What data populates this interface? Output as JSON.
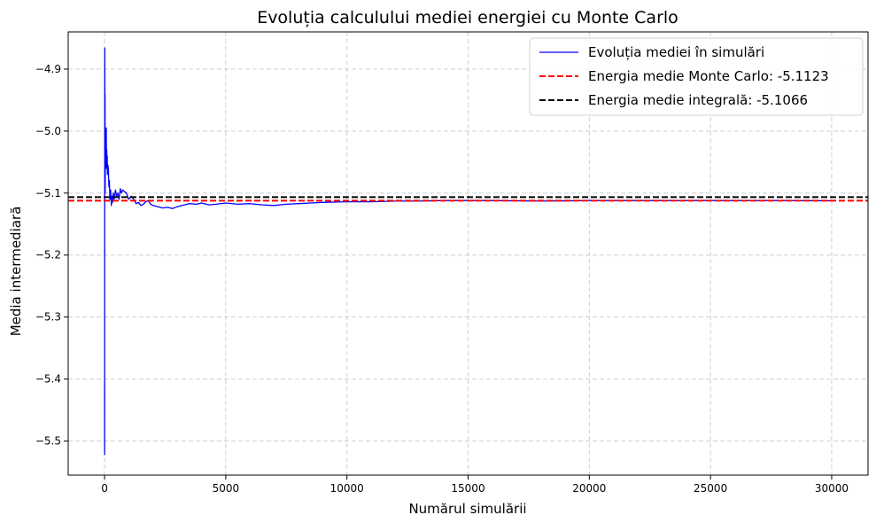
{
  "chart_data": {
    "type": "line",
    "title": "Evoluția calculului mediei energiei cu Monte Carlo",
    "xlabel": "Numărul simulării",
    "ylabel": "Media intermediară",
    "xlim": [
      -1500,
      31500
    ],
    "ylim": [
      -5.555,
      -4.84
    ],
    "xticks": [
      0,
      5000,
      10000,
      15000,
      20000,
      25000,
      30000
    ],
    "xtick_labels": [
      "0",
      "5000",
      "10000",
      "15000",
      "20000",
      "25000",
      "30000"
    ],
    "yticks": [
      -5.5,
      -5.4,
      -5.3,
      -5.2,
      -5.1,
      -5.0,
      -4.9
    ],
    "ytick_labels": [
      "−5.5",
      "−5.4",
      "−5.3",
      "−5.2",
      "−5.1",
      "−5.0",
      "−4.9"
    ],
    "grid": true,
    "legend_position": "top-right",
    "series": [
      {
        "name": "Evoluția mediei în simulări",
        "color": "#0000ff",
        "style": "solid",
        "x": [
          1,
          3,
          5,
          10,
          15,
          20,
          25,
          30,
          40,
          50,
          60,
          70,
          80,
          90,
          100,
          110,
          120,
          140,
          160,
          180,
          200,
          220,
          250,
          280,
          300,
          330,
          360,
          400,
          450,
          500,
          550,
          600,
          650,
          700,
          750,
          800,
          900,
          1000,
          1100,
          1200,
          1300,
          1400,
          1500,
          1600,
          1700,
          1800,
          1900,
          2000,
          2200,
          2400,
          2600,
          2800,
          3000,
          3200,
          3500,
          3800,
          4000,
          4300,
          4600,
          5000,
          5500,
          6000,
          6500,
          7000,
          7500,
          8000,
          8500,
          9000,
          10000,
          11000,
          12000,
          13000,
          14000,
          15000,
          16000,
          18000,
          20000,
          22000,
          24000,
          26000,
          28000,
          30000
        ],
        "y": [
          -5.41,
          -5.522,
          -5.2,
          -4.866,
          -5.08,
          -4.94,
          -5.1,
          -5.05,
          -5.06,
          -5.0,
          -5.04,
          -4.995,
          -5.06,
          -5.03,
          -5.05,
          -5.04,
          -5.07,
          -5.055,
          -5.065,
          -5.09,
          -5.08,
          -5.11,
          -5.095,
          -5.12,
          -5.105,
          -5.115,
          -5.1,
          -5.11,
          -5.095,
          -5.105,
          -5.1,
          -5.11,
          -5.093,
          -5.1,
          -5.095,
          -5.097,
          -5.1,
          -5.11,
          -5.105,
          -5.11,
          -5.117,
          -5.115,
          -5.12,
          -5.118,
          -5.114,
          -5.112,
          -5.118,
          -5.12,
          -5.122,
          -5.124,
          -5.123,
          -5.125,
          -5.122,
          -5.12,
          -5.117,
          -5.118,
          -5.116,
          -5.119,
          -5.118,
          -5.116,
          -5.118,
          -5.117,
          -5.119,
          -5.12,
          -5.118,
          -5.117,
          -5.116,
          -5.115,
          -5.114,
          -5.114,
          -5.113,
          -5.113,
          -5.112,
          -5.112,
          -5.112,
          -5.113,
          -5.112,
          -5.112,
          -5.112,
          -5.112,
          -5.112,
          -5.1123
        ]
      },
      {
        "name": "Energia medie Monte Carlo: -5.1123",
        "color": "#ff0000",
        "style": "dashed",
        "hline": -5.1123
      },
      {
        "name": "Energia medie integrală: -5.1066",
        "color": "#000000",
        "style": "dashed",
        "hline": -5.1066
      }
    ]
  }
}
